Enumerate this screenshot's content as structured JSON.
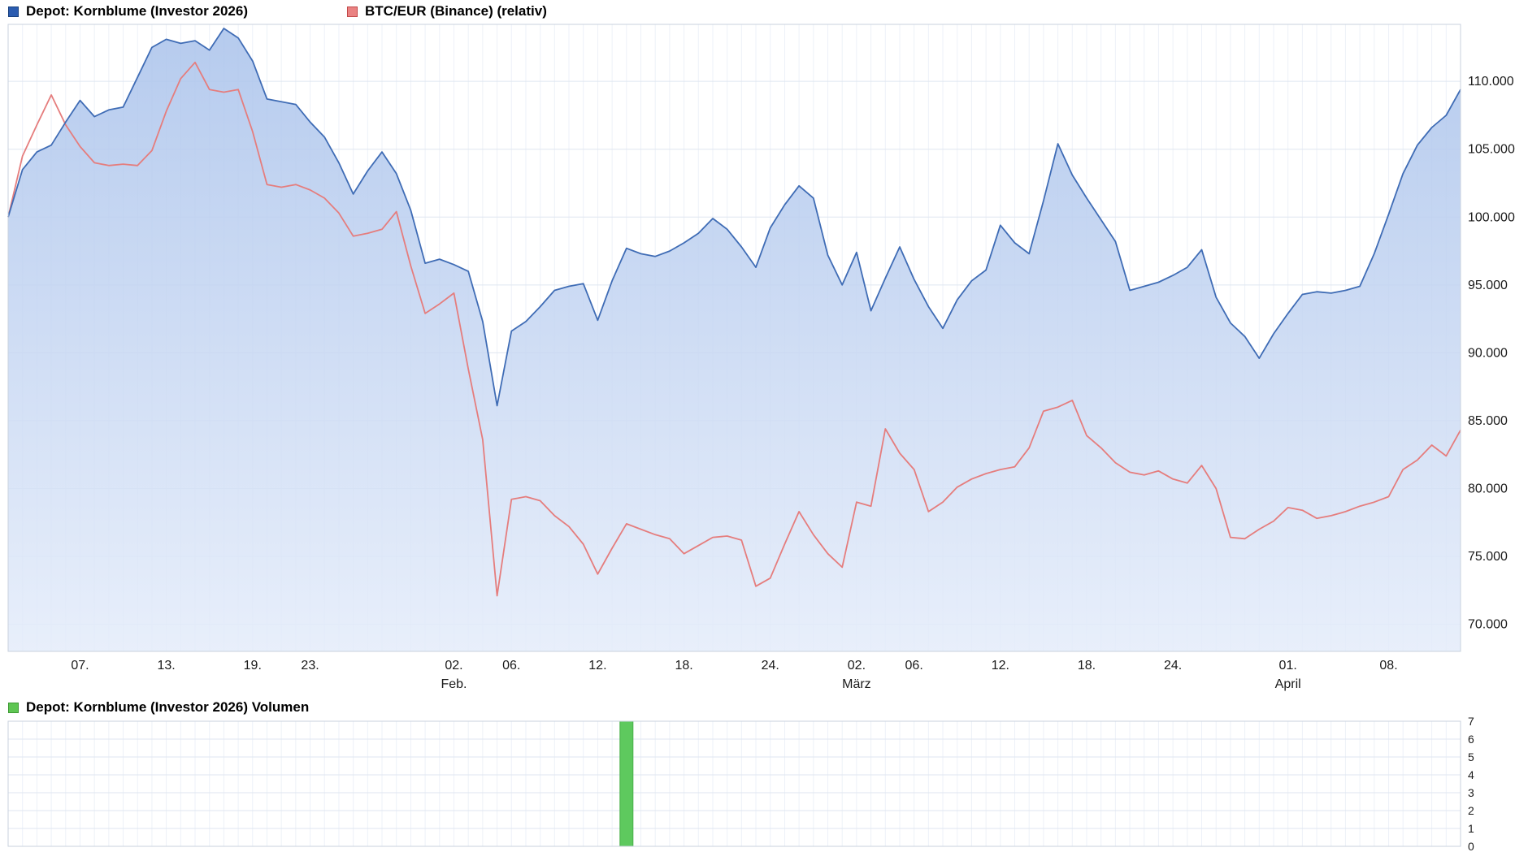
{
  "main_legend": {
    "depot": {
      "label": "Depot: Kornblume (Investor 2026)"
    },
    "btc": {
      "label": "BTC/EUR (Binance) (relativ)"
    }
  },
  "volume_legend": {
    "label": "Depot: Kornblume (Investor 2026) Volumen"
  },
  "colors": {
    "depot_line": "#3f6cb5",
    "depot_fill_top": "#a9c2eb",
    "depot_fill_bottom": "#e4ecfa",
    "btc_line": "#e57d7d",
    "volume_bar": "#5ec95e",
    "volume_bar_border": "#49b049",
    "grid_h": "#dfe6f0",
    "grid_v": "#edf1f8",
    "plot_border": "#c9d2de",
    "axis_text": "#1a1a1a",
    "depot_swatch": "#2b5cb0",
    "depot_swatch_border": "#17407e",
    "btc_swatch": "#ea8282",
    "btc_swatch_border": "#c24848",
    "volume_swatch": "#5fc653",
    "volume_swatch_border": "#3d9a34"
  },
  "chart_data": [
    {
      "type": "line",
      "title": "Depot Kornblume vs BTC/EUR relative performance",
      "ylim": [
        68,
        114.2
      ],
      "grid": true,
      "legend_position": "top-left",
      "y_ticks": [
        {
          "label": "110.000",
          "value": 110
        },
        {
          "label": "105.000",
          "value": 105
        },
        {
          "label": "100.000",
          "value": 100
        },
        {
          "label": "95.000",
          "value": 95
        },
        {
          "label": "90.000",
          "value": 90
        },
        {
          "label": "85.000",
          "value": 85
        },
        {
          "label": "80.000",
          "value": 80
        },
        {
          "label": "75.000",
          "value": 75
        },
        {
          "label": "70.000",
          "value": 70
        }
      ],
      "x_ticks": [
        {
          "label": "07.",
          "day": 5
        },
        {
          "label": "13.",
          "day": 11
        },
        {
          "label": "19.",
          "day": 17
        },
        {
          "label": "23.",
          "day": 21
        },
        {
          "label": "02.",
          "day": 31
        },
        {
          "label": "06.",
          "day": 35
        },
        {
          "label": "12.",
          "day": 41
        },
        {
          "label": "18.",
          "day": 47
        },
        {
          "label": "24.",
          "day": 53
        },
        {
          "label": "02.",
          "day": 59
        },
        {
          "label": "06.",
          "day": 63
        },
        {
          "label": "12.",
          "day": 69
        },
        {
          "label": "18.",
          "day": 75
        },
        {
          "label": "24.",
          "day": 81
        },
        {
          "label": "01.",
          "day": 89
        },
        {
          "label": "08.",
          "day": 96
        }
      ],
      "x_month_ticks": [
        {
          "label": "Feb.",
          "day": 31
        },
        {
          "label": "März",
          "day": 59
        },
        {
          "label": "April",
          "day": 89
        }
      ],
      "series": [
        {
          "name": "Depot: Kornblume (Investor 2026)",
          "area_fill": true,
          "values": [
            100.0,
            103.5,
            104.8,
            105.3,
            107.0,
            108.6,
            107.4,
            107.9,
            108.1,
            110.3,
            112.5,
            113.1,
            112.8,
            113.0,
            112.3,
            113.9,
            113.2,
            111.5,
            108.7,
            108.5,
            108.3,
            107.0,
            105.9,
            104.0,
            101.7,
            103.4,
            104.8,
            103.2,
            100.5,
            96.6,
            96.9,
            96.5,
            96.0,
            92.3,
            86.1,
            91.6,
            92.3,
            93.4,
            94.6,
            94.9,
            95.1,
            92.4,
            95.3,
            97.7,
            97.3,
            97.1,
            97.5,
            98.1,
            98.8,
            99.9,
            99.1,
            97.8,
            96.3,
            99.2,
            100.9,
            102.3,
            101.4,
            97.2,
            95.0,
            97.4,
            93.1,
            95.5,
            97.8,
            95.4,
            93.4,
            91.8,
            93.9,
            95.3,
            96.1,
            99.4,
            98.1,
            97.3,
            101.2,
            105.4,
            103.1,
            101.4,
            99.8,
            98.2,
            94.6,
            94.9,
            95.2,
            95.7,
            96.3,
            97.6,
            94.1,
            92.2,
            91.2,
            89.6,
            91.4,
            92.9,
            94.3,
            94.5,
            94.4,
            94.6,
            94.9,
            97.3,
            100.2,
            103.2,
            105.3,
            106.6,
            107.5,
            109.4
          ]
        },
        {
          "name": "BTC/EUR (Binance) (relativ)",
          "area_fill": false,
          "values": [
            100.0,
            104.5,
            106.8,
            109.0,
            106.8,
            105.2,
            104.0,
            103.8,
            103.9,
            103.8,
            104.9,
            107.8,
            110.2,
            111.4,
            109.4,
            109.2,
            109.4,
            106.3,
            102.4,
            102.2,
            102.4,
            102.0,
            101.4,
            100.3,
            98.6,
            98.8,
            99.1,
            100.4,
            96.4,
            92.9,
            93.6,
            94.4,
            88.8,
            83.6,
            72.1,
            79.2,
            79.4,
            79.1,
            78.0,
            77.2,
            75.9,
            73.7,
            75.6,
            77.4,
            77.0,
            76.6,
            76.3,
            75.2,
            75.8,
            76.4,
            76.5,
            76.2,
            72.8,
            73.4,
            75.9,
            78.3,
            76.6,
            75.2,
            74.2,
            79.0,
            78.7,
            84.4,
            82.6,
            81.4,
            78.3,
            79.0,
            80.1,
            80.7,
            81.1,
            81.4,
            81.6,
            83.0,
            85.7,
            86.0,
            86.5,
            83.9,
            83.0,
            81.9,
            81.2,
            81.0,
            81.3,
            80.7,
            80.4,
            81.7,
            80.0,
            76.4,
            76.3,
            77.0,
            77.6,
            78.6,
            78.4,
            77.8,
            78.0,
            78.3,
            78.7,
            79.0,
            79.4,
            81.4,
            82.1,
            83.2,
            82.4,
            84.3
          ]
        }
      ]
    },
    {
      "type": "bar",
      "title": "Depot: Kornblume (Investor 2026) Volumen",
      "ylim": [
        0,
        7
      ],
      "grid": true,
      "y_ticks": [
        {
          "label": "7",
          "value": 7
        },
        {
          "label": "6",
          "value": 6
        },
        {
          "label": "5",
          "value": 5
        },
        {
          "label": "4",
          "value": 4
        },
        {
          "label": "3",
          "value": 3
        },
        {
          "label": "2",
          "value": 2
        },
        {
          "label": "1",
          "value": 1
        },
        {
          "label": "0",
          "value": 0
        }
      ],
      "bars": [
        {
          "day": 43,
          "value": 7
        }
      ]
    }
  ]
}
